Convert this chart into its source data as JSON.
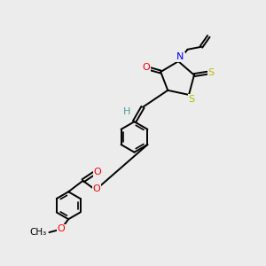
{
  "bg_color": "#ececec",
  "atom_colors": {
    "C": "#000000",
    "H": "#4a9a9a",
    "N": "#0000ff",
    "O": "#ff0000",
    "S": "#b8b800"
  },
  "bond_color": "#000000",
  "bond_width": 1.4,
  "figsize": [
    3.0,
    3.0
  ],
  "dpi": 100,
  "xlim": [
    0,
    10
  ],
  "ylim": [
    0,
    10
  ]
}
